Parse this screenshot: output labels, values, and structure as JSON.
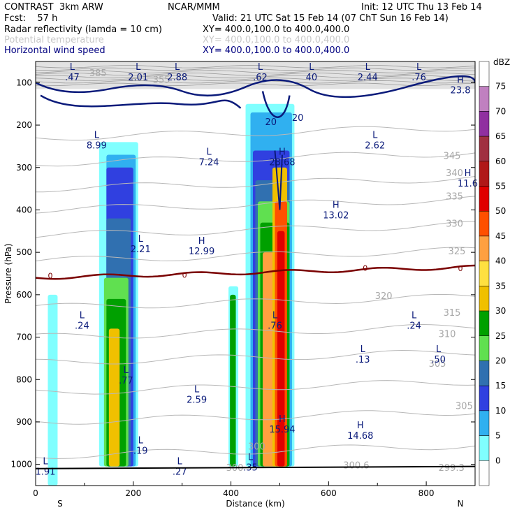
{
  "header": {
    "model": "CONTRAST  3km ARW",
    "org": "NCAR/MMM",
    "init": "Init: 12 UTC Thu 13 Feb 14",
    "fcst": "Fcst:    57 h",
    "valid": "Valid: 21 UTC Sat 15 Feb 14 (07 ChT Sun 16 Feb 14)",
    "fields": [
      {
        "label": "Radar reflectivity (lamda = 10 cm)",
        "xy": "XY= 400.0,100.0 to 400.0,400.0",
        "color": "#000000"
      },
      {
        "label": "Potential temperature",
        "xy": "XY= 400.0,100.0 to 400.0,400.0",
        "color": "#c8c8c8"
      },
      {
        "label": "Horizontal wind speed",
        "xy": "XY= 400.0,100.0 to 400.0,400.0",
        "color": "#000080"
      }
    ]
  },
  "chart_data": {
    "type": "cross-section",
    "xlabel": "Distance (km)",
    "ylabel": "Pressure (hPa)",
    "xlim": [
      0,
      900
    ],
    "ylim": [
      1050,
      50
    ],
    "x_ticks": [
      0,
      200,
      400,
      600,
      800
    ],
    "y_ticks": [
      100,
      200,
      300,
      400,
      500,
      600,
      700,
      800,
      900,
      1000
    ],
    "x_end_labels": {
      "left": "S",
      "right": "N"
    },
    "colorbar": {
      "unit": "dBZ",
      "levels": [
        75,
        70,
        65,
        60,
        55,
        50,
        45,
        40,
        35,
        30,
        25,
        20,
        15,
        10,
        5,
        0
      ],
      "colors": [
        "#ffffff",
        "#c080c0",
        "#9030a0",
        "#a03040",
        "#b01818",
        "#e00000",
        "#ff5000",
        "#ffa040",
        "#ffe040",
        "#f0c000",
        "#00a000",
        "#60e050",
        "#3070b0",
        "#3040e0",
        "#30b0f0",
        "#80ffff",
        "#ffffff"
      ]
    },
    "reflectivity_columns": [
      {
        "x0": 25,
        "x1": 45,
        "p_top": 1000,
        "p_bot": 1050,
        "max_dbz": 5
      },
      {
        "x0": 130,
        "x1": 210,
        "p_top": 250,
        "p_bot": 1010,
        "max_dbz": 40
      },
      {
        "x0": 395,
        "x1": 415,
        "p_top": 580,
        "p_bot": 1010,
        "max_dbz": 30
      },
      {
        "x0": 430,
        "x1": 530,
        "p_top": 150,
        "p_bot": 1010,
        "max_dbz": 55
      }
    ],
    "theta_contour_labels": [
      "385",
      "355",
      "345",
      "340",
      "335",
      "330",
      "325",
      "320",
      "315",
      "310",
      "305",
      "300",
      "300.6",
      "299.3"
    ],
    "freezing_level_label": "0",
    "wind_contour_labels": [
      "20",
      "20"
    ],
    "extrema_labels": [
      {
        "kind": "L",
        "value": ".47",
        "x": 75,
        "p": 80
      },
      {
        "kind": "L",
        "value": "2.01",
        "x": 210,
        "p": 80
      },
      {
        "kind": "L",
        "value": "2.88",
        "x": 290,
        "p": 80
      },
      {
        "kind": "L",
        "value": ".62",
        "x": 460,
        "p": 80
      },
      {
        "kind": "L",
        "value": "40",
        "x": 565,
        "p": 80
      },
      {
        "kind": "L",
        "value": "2.44",
        "x": 680,
        "p": 80
      },
      {
        "kind": "L",
        "value": ".76",
        "x": 785,
        "p": 80
      },
      {
        "kind": "H",
        "value": "23.8",
        "x": 870,
        "p": 110
      },
      {
        "kind": "L",
        "value": "8.99",
        "x": 125,
        "p": 240
      },
      {
        "kind": "L",
        "value": "7.24",
        "x": 355,
        "p": 280
      },
      {
        "kind": "H",
        "value": "28.68",
        "x": 505,
        "p": 280
      },
      {
        "kind": "L",
        "value": "2.62",
        "x": 695,
        "p": 240
      },
      {
        "kind": "H",
        "value": "11.6",
        "x": 885,
        "p": 330
      },
      {
        "kind": "H",
        "value": "13.02",
        "x": 615,
        "p": 405
      },
      {
        "kind": "L",
        "value": "2.21",
        "x": 215,
        "p": 485
      },
      {
        "kind": "H",
        "value": "12.99",
        "x": 340,
        "p": 490
      },
      {
        "kind": "L",
        "value": ".24",
        "x": 95,
        "p": 665
      },
      {
        "kind": "L",
        "value": ".76",
        "x": 490,
        "p": 665
      },
      {
        "kind": "L",
        "value": ".24",
        "x": 775,
        "p": 665
      },
      {
        "kind": "L",
        "value": ".13",
        "x": 670,
        "p": 745
      },
      {
        "kind": "L",
        "value": ".50",
        "x": 825,
        "p": 745
      },
      {
        "kind": "L",
        "value": ".77",
        "x": 185,
        "p": 795
      },
      {
        "kind": "L",
        "value": "2.59",
        "x": 330,
        "p": 840
      },
      {
        "kind": "H",
        "value": "15.94",
        "x": 505,
        "p": 910
      },
      {
        "kind": "H",
        "value": "14.68",
        "x": 665,
        "p": 925
      },
      {
        "kind": "L",
        "value": ".19",
        "x": 215,
        "p": 960
      },
      {
        "kind": "L",
        "value": "1.91",
        "x": 20,
        "p": 1010
      },
      {
        "kind": "L",
        "value": ".27",
        "x": 295,
        "p": 1010
      },
      {
        "kind": "L",
        "value": ".35",
        "x": 440,
        "p": 1000
      }
    ]
  }
}
